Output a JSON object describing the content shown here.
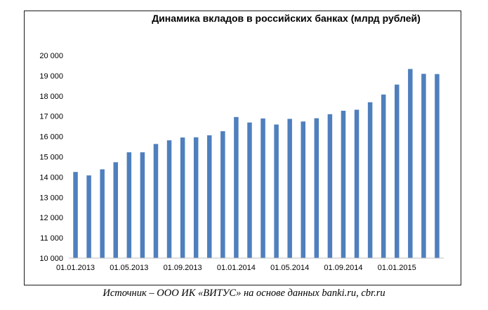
{
  "chart_data": {
    "type": "bar",
    "title": "Динамика вкладов в российских банках (млрд рублей)",
    "xlabel": "",
    "ylabel": "",
    "ylim": [
      10000,
      20000
    ],
    "yticks": [
      10000,
      11000,
      12000,
      13000,
      14000,
      15000,
      16000,
      17000,
      18000,
      19000,
      20000
    ],
    "ytick_labels": [
      "10 000",
      "11 000",
      "12 000",
      "13 000",
      "14 000",
      "15 000",
      "16 000",
      "17 000",
      "18 000",
      "19 000",
      "20 000"
    ],
    "categories": [
      "01.01.2013",
      "01.02.2013",
      "01.03.2013",
      "01.04.2013",
      "01.05.2013",
      "01.06.2013",
      "01.07.2013",
      "01.08.2013",
      "01.09.2013",
      "01.10.2013",
      "01.11.2013",
      "01.12.2013",
      "01.01.2014",
      "01.02.2014",
      "01.03.2014",
      "01.04.2014",
      "01.05.2014",
      "01.06.2014",
      "01.07.2014",
      "01.08.2014",
      "01.09.2014",
      "01.10.2014",
      "01.11.2014",
      "01.12.2014",
      "01.01.2015",
      "01.02.2015",
      "01.03.2015",
      "01.04.2015"
    ],
    "xtick_labels": [
      "01.01.2013",
      "01.05.2013",
      "01.09.2013",
      "01.01.2014",
      "01.05.2014",
      "01.09.2014",
      "01.01.2015"
    ],
    "values": [
      14250,
      14080,
      14380,
      14730,
      15220,
      15220,
      15630,
      15810,
      15950,
      15960,
      16060,
      16260,
      16960,
      16690,
      16890,
      16590,
      16870,
      16740,
      16900,
      17100,
      17270,
      17320,
      17690,
      18070,
      18560,
      19330,
      19090,
      19080
    ],
    "series_color": "#4f7fbd",
    "grid": false,
    "legend": "none"
  },
  "source_caption": "Источник – ООО ИК «ВИТУС» на основе данных banki.ru, cbr.ru"
}
